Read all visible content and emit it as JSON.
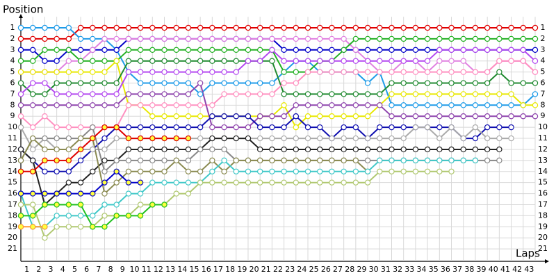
{
  "chart_data": {
    "type": "line",
    "title": "Position",
    "x_label": "Laps",
    "x": [
      0,
      1,
      2,
      3,
      4,
      5,
      6,
      7,
      8,
      9,
      10,
      11,
      12,
      13,
      14,
      15,
      16,
      17,
      18,
      19,
      20,
      21,
      22,
      23,
      24,
      25,
      26,
      27,
      28,
      29,
      30,
      31,
      32,
      33,
      34,
      35,
      36,
      37,
      38,
      39,
      40,
      41,
      42,
      43
    ],
    "xlim": [
      0,
      43
    ],
    "xticks": [
      1,
      2,
      3,
      4,
      5,
      6,
      7,
      8,
      9,
      10,
      11,
      12,
      13,
      14,
      15,
      16,
      17,
      18,
      19,
      20,
      21,
      22,
      23,
      24,
      25,
      26,
      27,
      28,
      29,
      30,
      31,
      32,
      33,
      34,
      35,
      36,
      37,
      38,
      39,
      40,
      41,
      42,
      43
    ],
    "ylim": [
      22,
      0
    ],
    "yticks": [
      1,
      2,
      3,
      4,
      5,
      6,
      7,
      8,
      9,
      10,
      11,
      12,
      13,
      14,
      15,
      16,
      17,
      18,
      19,
      20,
      21
    ],
    "grid": true,
    "series": [
      {
        "color": "#e00000",
        "marker_fill": "#ffffff",
        "values": [
          2,
          2,
          2,
          2,
          2,
          1,
          1,
          1,
          1,
          1,
          1,
          1,
          1,
          1,
          1,
          1,
          1,
          1,
          1,
          1,
          1,
          1,
          1,
          1,
          1,
          1,
          1,
          1,
          1,
          1,
          1,
          1,
          1,
          1,
          1,
          1,
          1,
          1,
          1,
          1,
          1,
          1,
          1,
          1
        ]
      },
      {
        "color": "#1e9be8",
        "marker_fill": "#ffffff",
        "values": [
          1,
          1,
          1,
          1,
          1,
          2,
          2,
          2,
          3,
          5,
          6,
          6,
          6,
          6,
          6,
          7,
          6,
          6,
          6,
          6,
          6,
          6,
          5,
          4,
          4,
          5,
          5,
          5,
          5,
          6,
          5,
          8,
          8,
          8,
          8,
          8,
          8,
          8,
          8,
          8,
          8,
          8,
          8,
          7
        ]
      },
      {
        "color": "#0000c8",
        "marker_fill": "#ffffff",
        "values": [
          3,
          3,
          4,
          4,
          3,
          3,
          3,
          3,
          3,
          2,
          2,
          2,
          2,
          2,
          2,
          2,
          2,
          2,
          2,
          2,
          2,
          2,
          3,
          3,
          3,
          3,
          3,
          3,
          3,
          3,
          3,
          3,
          3,
          3,
          3,
          3,
          3,
          3,
          3,
          3,
          3,
          3,
          3,
          3
        ]
      },
      {
        "color": "#e080e0",
        "marker_fill": "#ffffff",
        "values": [
          5,
          5,
          5,
          5,
          4,
          4,
          3,
          2,
          2,
          2,
          2,
          2,
          2,
          2,
          2,
          2,
          2,
          2,
          2,
          2,
          2,
          2,
          2,
          2,
          2,
          2,
          2,
          2,
          3,
          4,
          5,
          5,
          4,
          4,
          5,
          4,
          4,
          4,
          5,
          5,
          4,
          4,
          4,
          5
        ]
      },
      {
        "color": "#22b022",
        "marker_fill": "#ffffff",
        "values": [
          4,
          4,
          3,
          3,
          3,
          4,
          4,
          4,
          4,
          3,
          3,
          3,
          3,
          3,
          3,
          3,
          3,
          3,
          3,
          3,
          3,
          3,
          5,
          5,
          5,
          4,
          4,
          3,
          2,
          2,
          2,
          2,
          2,
          2,
          2,
          2,
          2,
          2,
          2,
          2,
          2,
          2,
          2,
          2
        ]
      },
      {
        "color": "#e8e800",
        "marker_fill": "#ffffff",
        "values": [
          5,
          5,
          5,
          5,
          5,
          5,
          5,
          5,
          4,
          8,
          8,
          9,
          9,
          9,
          9,
          9,
          9,
          9,
          9,
          9,
          9,
          9,
          8,
          10,
          9,
          9,
          9,
          9,
          9,
          9,
          8,
          7,
          7,
          7,
          7,
          7,
          7,
          7,
          7,
          7,
          7,
          7,
          8,
          8
        ]
      },
      {
        "color": "#208a30",
        "marker_fill": "#ffffff",
        "values": [
          6,
          7,
          7,
          6,
          6,
          6,
          6,
          6,
          6,
          4,
          4,
          4,
          4,
          4,
          4,
          4,
          4,
          4,
          4,
          4,
          4,
          4,
          7,
          7,
          7,
          7,
          7,
          7,
          7,
          7,
          7,
          6,
          6,
          6,
          6,
          6,
          6,
          6,
          6,
          6,
          5,
          6,
          6,
          6
        ]
      },
      {
        "color": "#b448f0",
        "marker_fill": "#ffffff",
        "values": [
          7,
          6,
          6,
          7,
          7,
          7,
          7,
          7,
          7,
          5,
          5,
          5,
          5,
          5,
          5,
          5,
          5,
          5,
          5,
          4,
          4,
          3,
          4,
          4,
          4,
          4,
          4,
          4,
          4,
          4,
          4,
          4,
          4,
          4,
          4,
          3,
          3,
          3,
          3,
          3,
          3,
          3,
          3,
          4
        ]
      },
      {
        "color": "#ff90c0",
        "marker_fill": "#ffffff",
        "values": [
          9,
          10,
          9,
          10,
          10,
          10,
          10,
          10,
          10,
          8,
          8,
          8,
          8,
          8,
          8,
          8,
          8,
          7,
          7,
          7,
          7,
          7,
          6,
          6,
          5,
          5,
          5,
          5,
          5,
          5,
          5,
          5,
          5,
          5,
          5,
          5,
          5,
          5,
          5,
          5,
          4,
          4,
          4,
          5
        ]
      },
      {
        "color": "#8e44ad",
        "marker_fill": "#ffffff",
        "values": [
          8,
          8,
          8,
          8,
          8,
          8,
          8,
          8,
          8,
          7,
          7,
          7,
          7,
          7,
          7,
          6,
          10,
          10,
          10,
          10,
          9,
          9,
          9,
          8,
          8,
          8,
          8,
          8,
          8,
          8,
          8,
          9,
          9,
          9,
          9,
          9,
          9,
          9,
          9,
          9,
          9,
          9,
          9,
          9
        ]
      },
      {
        "color": "#1010b0",
        "marker_fill": "#ffffff",
        "values": [
          12,
          13,
          14,
          14,
          14,
          13,
          12,
          11,
          10,
          10,
          10,
          10,
          10,
          10,
          10,
          10,
          9,
          9,
          9,
          9,
          10,
          10,
          10,
          9,
          10,
          10,
          11,
          10,
          10,
          11,
          10,
          10,
          10,
          10,
          10,
          10,
          10,
          11,
          11,
          10,
          10,
          10,
          null,
          null
        ]
      },
      {
        "color": "#aaaaaa",
        "marker_fill": "#ffffff",
        "values": [
          10,
          12,
          11,
          12,
          12,
          12,
          12,
          12,
          11,
          11,
          11,
          11,
          11,
          11,
          11,
          11,
          11,
          11,
          11,
          11,
          11,
          11,
          11,
          11,
          11,
          11,
          11,
          11,
          11,
          11,
          11,
          11,
          11,
          10,
          10,
          11,
          10,
          11,
          10,
          11,
          11,
          11,
          null,
          null
        ]
      },
      {
        "color": "#222222",
        "marker_fill": "#ffffff",
        "values": [
          12,
          13,
          17,
          16,
          15,
          15,
          14,
          13,
          13,
          12,
          12,
          12,
          12,
          12,
          12,
          12,
          11,
          11,
          11,
          11,
          12,
          12,
          12,
          12,
          12,
          12,
          12,
          12,
          12,
          12,
          12,
          12,
          12,
          12,
          12,
          12,
          12,
          12,
          12,
          12,
          12,
          null,
          null,
          null
        ]
      },
      {
        "color": "#888888",
        "marker_fill": "#ffffff",
        "values": [
          13,
          11,
          11,
          11,
          11,
          11,
          10,
          14,
          13,
          13,
          13,
          13,
          13,
          13,
          13,
          12,
          12,
          12,
          13,
          13,
          13,
          13,
          13,
          13,
          13,
          13,
          13,
          13,
          13,
          13,
          13,
          13,
          13,
          13,
          13,
          13,
          13,
          13,
          13,
          13,
          13,
          null,
          null,
          null
        ]
      },
      {
        "color": "#8a8a50",
        "marker_fill": "#ffffff",
        "values": [
          13,
          11,
          12,
          12,
          12,
          11,
          11,
          16,
          15,
          14,
          14,
          14,
          14,
          13,
          14,
          14,
          13,
          14,
          13,
          13,
          13,
          13,
          13,
          13,
          13,
          13,
          13,
          13,
          13,
          14,
          null,
          null,
          null,
          null,
          null,
          null,
          null,
          null,
          null,
          null,
          null,
          null,
          null,
          null
        ]
      },
      {
        "color": "#40c8c8",
        "marker_fill": "#ffffff",
        "values": [
          16,
          19,
          19,
          18,
          18,
          18,
          18,
          17,
          17,
          16,
          16,
          15,
          15,
          15,
          15,
          15,
          14,
          13,
          14,
          14,
          14,
          14,
          14,
          14,
          14,
          14,
          14,
          14,
          14,
          14,
          13,
          13,
          13,
          13,
          13,
          13,
          13,
          13,
          13,
          null,
          null,
          null,
          null,
          null
        ]
      },
      {
        "color": "#b0c870",
        "marker_fill": "#ffffff",
        "values": [
          17,
          17,
          20,
          19,
          19,
          19,
          19,
          18,
          18,
          18,
          17,
          17,
          17,
          16,
          16,
          15,
          15,
          15,
          15,
          15,
          15,
          15,
          15,
          15,
          15,
          15,
          15,
          15,
          15,
          15,
          14,
          14,
          14,
          14,
          14,
          14,
          14,
          null,
          null,
          null,
          null,
          null,
          null,
          null
        ]
      },
      {
        "color": "#e00000",
        "marker_fill": "#ffff40",
        "values": [
          14,
          14,
          13,
          13,
          13,
          12,
          11,
          10,
          10,
          11,
          11,
          11,
          11,
          11,
          11,
          null,
          null,
          null,
          null,
          null,
          null,
          null,
          null,
          null,
          null,
          null,
          null,
          null,
          null,
          null,
          null,
          null,
          null,
          null,
          null,
          null,
          null,
          null,
          null,
          null,
          null,
          null,
          null,
          null
        ]
      },
      {
        "color": "#0000c8",
        "marker_fill": "#ffff40",
        "values": [
          16,
          16,
          16,
          16,
          16,
          16,
          16,
          15,
          14,
          15,
          15,
          null,
          null,
          null,
          null,
          null,
          null,
          null,
          null,
          null,
          null,
          null,
          null,
          null,
          null,
          null,
          null,
          null,
          null,
          null,
          null,
          null,
          null,
          null,
          null,
          null,
          null,
          null,
          null,
          null,
          null,
          null,
          null,
          null
        ]
      },
      {
        "color": "#20c020",
        "marker_fill": "#ffff40",
        "values": [
          18,
          18,
          17,
          17,
          17,
          17,
          19,
          19,
          18,
          18,
          18,
          17,
          17,
          null,
          null,
          null,
          null,
          null,
          null,
          null,
          null,
          null,
          null,
          null,
          null,
          null,
          null,
          null,
          null,
          null,
          null,
          null,
          null,
          null,
          null,
          null,
          null,
          null,
          null,
          null,
          null,
          null,
          null,
          null
        ]
      },
      {
        "color": "#ff9933",
        "marker_fill": "#ffff40",
        "values": [
          19,
          19,
          19,
          null,
          null,
          null,
          null,
          null,
          null,
          null,
          null,
          null,
          null,
          null,
          null,
          null,
          null,
          null,
          null,
          null,
          null,
          null,
          null,
          null,
          null,
          null,
          null,
          null,
          null,
          null,
          null,
          null,
          null,
          null,
          null,
          null,
          null,
          null,
          null,
          null,
          null,
          null,
          null,
          null
        ]
      }
    ]
  }
}
